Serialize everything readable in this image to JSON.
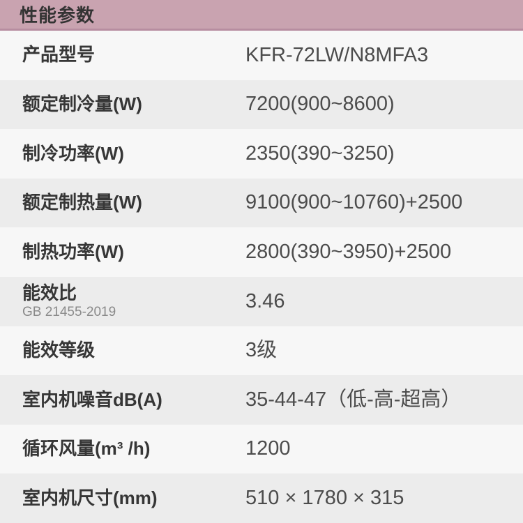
{
  "header": {
    "title": "性能参数"
  },
  "table": {
    "rows": [
      {
        "label": "产品型号",
        "sublabel": "",
        "value": "KFR-72LW/N8MFA3"
      },
      {
        "label": "额定制冷量(W)",
        "sublabel": "",
        "value": "7200(900~8600)"
      },
      {
        "label": "制冷功率(W)",
        "sublabel": "",
        "value": "2350(390~3250)"
      },
      {
        "label": "额定制热量(W)",
        "sublabel": "",
        "value": "9100(900~10760)+2500"
      },
      {
        "label": "制热功率(W)",
        "sublabel": "",
        "value": "2800(390~3950)+2500"
      },
      {
        "label": "能效比",
        "sublabel": "GB 21455-2019",
        "value": "3.46"
      },
      {
        "label": "能效等级",
        "sublabel": "",
        "value": "3级"
      },
      {
        "label": "室内机噪音dB(A)",
        "sublabel": "",
        "value": "35-44-47（低-高-超高）"
      },
      {
        "label": "循环风量(m³ /h)",
        "sublabel": "",
        "value": "1200"
      },
      {
        "label": "室内机尺寸(mm)",
        "sublabel": "",
        "value": "510 × 1780 × 315"
      }
    ]
  },
  "colors": {
    "header_bg": "#c9a3b0",
    "header_border": "#b78da0",
    "header_text": "#333333",
    "row_odd": "#f7f7f7",
    "row_even": "#ececec",
    "label_color": "#363636",
    "value_color": "#4c4c4c",
    "sublabel_color": "#8a8a8a"
  }
}
